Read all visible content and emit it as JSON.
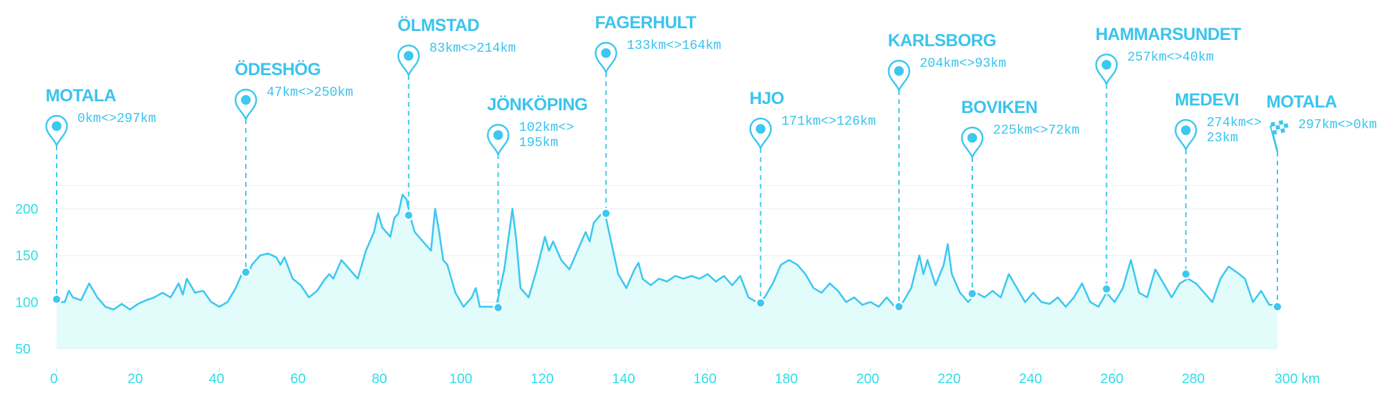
{
  "chart_data": {
    "type": "area",
    "x": [
      0,
      2,
      3,
      4,
      6,
      8,
      10,
      12,
      14,
      16,
      18,
      20,
      22,
      24,
      26,
      28,
      30,
      31,
      32,
      34,
      36,
      38,
      40,
      42,
      44,
      46,
      47,
      48,
      50,
      52,
      54,
      55,
      56,
      58,
      60,
      62,
      64,
      66,
      67,
      68,
      70,
      72,
      74,
      76,
      78,
      79,
      80,
      82,
      83,
      84,
      85,
      86,
      87,
      88,
      90,
      92,
      93,
      94,
      95,
      96,
      98,
      100,
      102,
      103,
      104,
      106,
      108,
      110,
      112,
      113,
      114,
      116,
      118,
      120,
      121,
      122,
      124,
      126,
      127,
      128,
      130,
      131,
      132,
      134,
      135,
      136,
      138,
      140,
      142,
      143,
      144,
      146,
      148,
      150,
      152,
      154,
      156,
      158,
      160,
      162,
      164,
      166,
      168,
      170,
      172,
      174,
      176,
      178,
      180,
      182,
      184,
      186,
      188,
      190,
      192,
      194,
      196,
      198,
      200,
      202,
      204,
      206,
      208,
      210,
      212,
      213,
      214,
      216,
      218,
      219,
      220,
      222,
      224,
      226,
      228,
      230,
      232,
      234,
      236,
      238,
      240,
      242,
      244,
      246,
      248,
      250,
      252,
      254,
      256,
      258,
      260,
      262,
      264,
      266,
      268,
      270,
      272,
      274,
      276,
      278,
      280,
      282,
      284,
      286,
      288,
      290,
      292,
      294,
      296,
      298,
      300
    ],
    "values": [
      100,
      100,
      112,
      105,
      102,
      120,
      105,
      95,
      92,
      98,
      92,
      98,
      102,
      105,
      110,
      105,
      120,
      108,
      125,
      110,
      112,
      100,
      95,
      100,
      115,
      135,
      130,
      140,
      150,
      152,
      148,
      140,
      148,
      125,
      118,
      105,
      112,
      125,
      130,
      125,
      145,
      135,
      125,
      155,
      175,
      195,
      180,
      170,
      190,
      195,
      215,
      210,
      190,
      175,
      165,
      155,
      200,
      175,
      145,
      140,
      110,
      95,
      105,
      115,
      95,
      95,
      95,
      135,
      200,
      165,
      115,
      105,
      135,
      170,
      155,
      165,
      145,
      135,
      145,
      155,
      175,
      165,
      185,
      195,
      190,
      170,
      130,
      115,
      135,
      142,
      125,
      118,
      125,
      122,
      128,
      125,
      128,
      125,
      130,
      122,
      128,
      118,
      128,
      105,
      100,
      105,
      120,
      140,
      145,
      140,
      130,
      115,
      110,
      120,
      112,
      100,
      105,
      97,
      100,
      95,
      105,
      95,
      100,
      115,
      150,
      130,
      145,
      118,
      140,
      162,
      130,
      110,
      100,
      110,
      105,
      112,
      105,
      130,
      115,
      100,
      110,
      100,
      98,
      105,
      95,
      105,
      120,
      100,
      95,
      110,
      100,
      115,
      145,
      110,
      105,
      135,
      120,
      105,
      120,
      125,
      120,
      110,
      100,
      125,
      138,
      132,
      125,
      100,
      112,
      97,
      97
    ],
    "color": "#3cc8f0",
    "fill": "#e2fbfb",
    "xlim": [
      0,
      300
    ],
    "ylim": [
      50,
      225
    ],
    "xticks": [
      0,
      20,
      40,
      60,
      80,
      100,
      120,
      140,
      160,
      180,
      200,
      220,
      240,
      260,
      280,
      {
        "value": 300,
        "label": "300 km"
      }
    ],
    "yticks": [
      50,
      100,
      150,
      200
    ],
    "grid": true,
    "waypoints": [
      {
        "name": "MOTALA",
        "label": "0km<>297km",
        "x": 0,
        "y": 103
      },
      {
        "name": "ÖDESHÖG",
        "label": "47km<>250km",
        "x": 46.5,
        "y": 132
      },
      {
        "name": "ÖLMSTAD",
        "label": "83km<>214km",
        "x": 86.5,
        "y": 193
      },
      {
        "name": "JÖNKÖPING",
        "label": "102km<>195km",
        "x": 108.5,
        "y": 94
      },
      {
        "name": "FAGERHULT",
        "label": "133km<>164km",
        "x": 135,
        "y": 195
      },
      {
        "name": "HJO",
        "label": "171km<>126km",
        "x": 173,
        "y": 99
      },
      {
        "name": "KARLSBORG",
        "label": "204km<>93km",
        "x": 207,
        "y": 95
      },
      {
        "name": "BOVIKEN",
        "label": "225km<>72km",
        "x": 225,
        "y": 109
      },
      {
        "name": "HAMMARSUNDET",
        "label": "257km<>40km",
        "x": 258,
        "y": 114
      },
      {
        "name": "MEDEVI",
        "label": "274km<>23km",
        "x": 277.5,
        "y": 130
      },
      {
        "name": "MOTALA",
        "label": "297km<>0km",
        "x": 300,
        "y": 95
      }
    ]
  }
}
